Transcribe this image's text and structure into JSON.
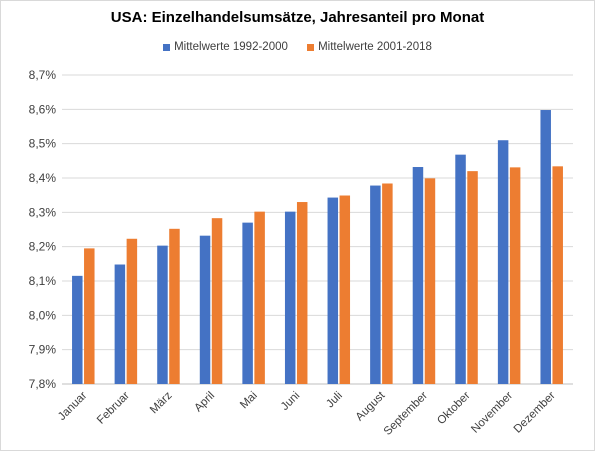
{
  "chart_data": {
    "type": "bar",
    "title": "USA: Einzelhandelsumsätze, Jahresanteil pro Monat",
    "categories": [
      "Januar",
      "Februar",
      "März",
      "April",
      "Mai",
      "Juni",
      "Juli",
      "August",
      "September",
      "Oktober",
      "November",
      "Dezember"
    ],
    "series": [
      {
        "name": "Mittelwerte 1992-2000",
        "color": "#4472c4",
        "values": [
          8.115,
          8.148,
          8.203,
          8.232,
          8.27,
          8.302,
          8.343,
          8.378,
          8.432,
          8.468,
          8.51,
          8.598
        ]
      },
      {
        "name": "Mittelwerte 2001-2018",
        "color": "#ed7d31",
        "values": [
          8.195,
          8.223,
          8.252,
          8.283,
          8.302,
          8.33,
          8.349,
          8.384,
          8.399,
          8.42,
          8.431,
          8.434
        ]
      }
    ],
    "ylim": [
      7.8,
      8.7
    ],
    "yticks": [
      "7,8%",
      "7,9%",
      "8,0%",
      "8,1%",
      "8,2%",
      "8,3%",
      "8,4%",
      "8,5%",
      "8,6%",
      "8,7%"
    ],
    "grid": true,
    "legend_position": "top"
  }
}
